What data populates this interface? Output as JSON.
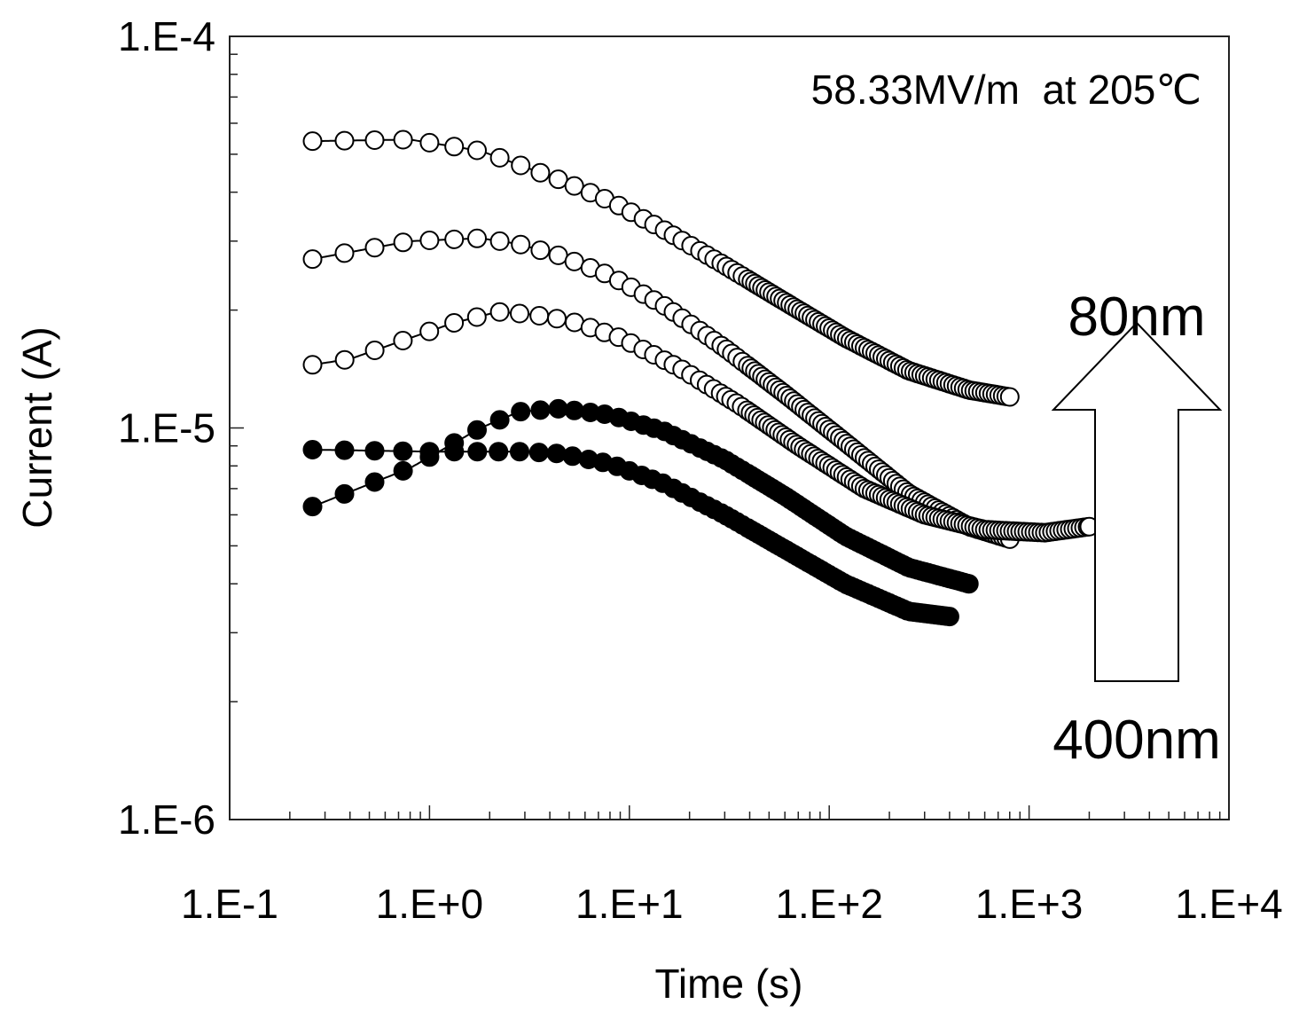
{
  "chart_data": {
    "type": "scatter",
    "title": "",
    "annotation": "58.33MV/m  at 205℃",
    "xlabel": "Time (s)",
    "ylabel": "Current (A)",
    "xscale": "log",
    "yscale": "log",
    "xlim": [
      0.1,
      10000
    ],
    "ylim": [
      1e-06,
      0.0001
    ],
    "x_tick_labels": [
      "1.E-1",
      "1.E+0",
      "1.E+1",
      "1.E+2",
      "1.E+3",
      "1.E+4"
    ],
    "y_tick_labels": [
      "1.E-6",
      "1.E-5",
      "1.E-4"
    ],
    "grid": false,
    "arrow": {
      "top_label": "80nm",
      "bottom_label": "400nm",
      "direction": "up"
    },
    "series": [
      {
        "name": "80nm",
        "marker": "open-circle",
        "x": [
          0.26,
          0.8,
          1.8,
          2.8,
          4.5,
          8,
          15,
          30,
          60,
          120,
          250,
          500,
          800
        ],
        "y": [
          5.4e-05,
          5.45e-05,
          5.1e-05,
          4.7e-05,
          4.3e-05,
          3.8e-05,
          3.2e-05,
          2.6e-05,
          2.1e-05,
          1.7e-05,
          1.4e-05,
          1.25e-05,
          1.2e-05
        ]
      },
      {
        "name": "series-2",
        "marker": "open-circle",
        "x": [
          0.26,
          0.8,
          1.8,
          2.8,
          4.5,
          8,
          15,
          30,
          60,
          120,
          250,
          500,
          800
        ],
        "y": [
          2.7e-05,
          3e-05,
          3.05e-05,
          2.95e-05,
          2.75e-05,
          2.45e-05,
          2.05e-05,
          1.6e-05,
          1.22e-05,
          9.2e-06,
          6.8e-06,
          5.6e-06,
          5.2e-06
        ]
      },
      {
        "name": "series-3",
        "marker": "open-circle",
        "x": [
          0.26,
          0.4,
          1.3,
          2.2,
          3.2,
          5,
          9,
          18,
          35,
          70,
          150,
          300,
          600,
          1200,
          2000
        ],
        "y": [
          1.45e-05,
          1.5e-05,
          1.85e-05,
          1.98e-05,
          1.95e-05,
          1.88e-05,
          1.7e-05,
          1.42e-05,
          1.15e-05,
          9e-06,
          7e-06,
          6e-06,
          5.5e-06,
          5.4e-06,
          5.6e-06
        ]
      },
      {
        "name": "series-4",
        "marker": "filled-circle",
        "x": [
          0.26,
          0.8,
          1.8,
          2.8,
          4.5,
          8,
          15,
          30,
          60,
          120,
          250,
          500
        ],
        "y": [
          6.3e-06,
          7.9e-06,
          1e-05,
          1.1e-05,
          1.12e-05,
          1.08e-05,
          9.8e-06,
          8.3e-06,
          6.7e-06,
          5.3e-06,
          4.4e-06,
          4e-06
        ]
      },
      {
        "name": "400nm",
        "marker": "filled-circle",
        "x": [
          0.26,
          1.0,
          2.0,
          3.0,
          4.5,
          8,
          15,
          30,
          60,
          120,
          250,
          400
        ],
        "y": [
          8.8e-06,
          8.7e-06,
          8.7e-06,
          8.7e-06,
          8.6e-06,
          8.1e-06,
          7.2e-06,
          6e-06,
          4.9e-06,
          4e-06,
          3.4e-06,
          3.3e-06
        ]
      }
    ]
  }
}
